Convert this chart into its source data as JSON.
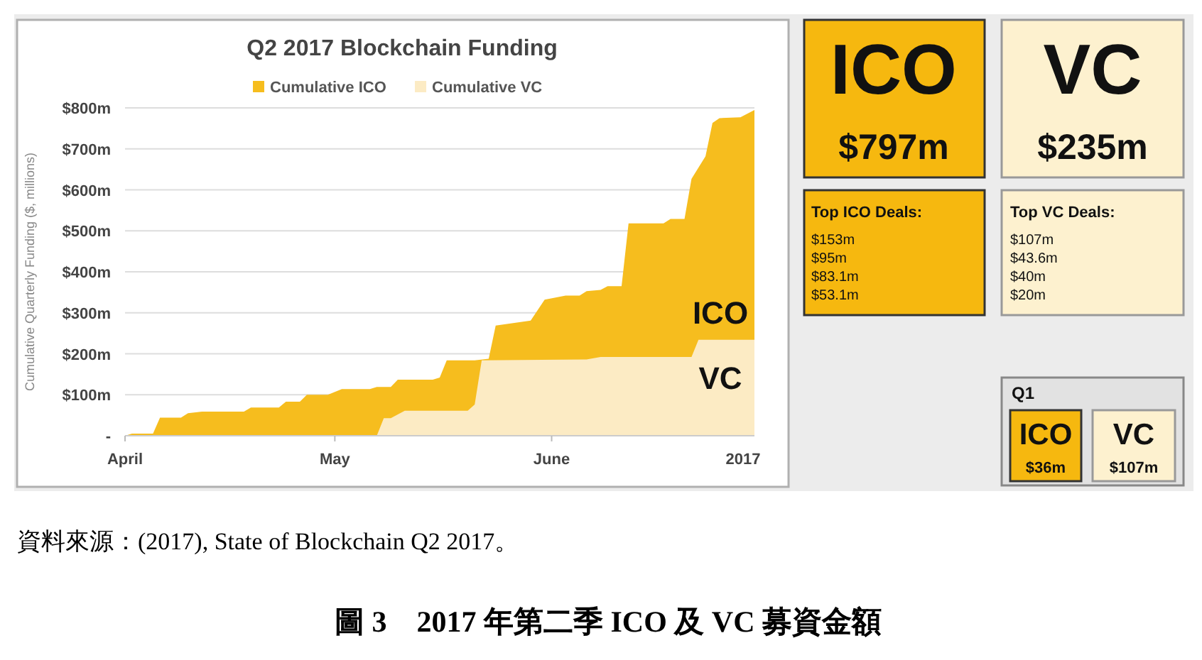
{
  "chart_data": [
    {
      "type": "area",
      "title": "Q2 2017 Blockchain Funding",
      "ylabel": "Cumulative Quarterly Funding ($, millions)",
      "legend": "top",
      "grid": "y",
      "xlim": [
        "2017-04-01",
        "2017-06-30"
      ],
      "xticks": [
        {
          "value": "2017-04-01",
          "label": "April"
        },
        {
          "value": "2017-05-01",
          "label": "May"
        },
        {
          "value": "2017-06-01",
          "label": "June"
        },
        {
          "value": "2017-06-30",
          "label": "2017"
        }
      ],
      "ylim": [
        0,
        800
      ],
      "yticks": [
        {
          "value": 0,
          "label": "-"
        },
        {
          "value": 100,
          "label": "$100m"
        },
        {
          "value": 200,
          "label": "$200m"
        },
        {
          "value": 300,
          "label": "$300m"
        },
        {
          "value": 400,
          "label": "$400m"
        },
        {
          "value": 500,
          "label": "$500m"
        },
        {
          "value": 600,
          "label": "$600m"
        },
        {
          "value": 700,
          "label": "$700m"
        },
        {
          "value": 800,
          "label": "$800m"
        }
      ],
      "series": [
        {
          "name": "Cumulative ICO",
          "color": "#f6bd1e",
          "x": [
            "2017-04-01",
            "2017-04-02",
            "2017-04-05",
            "2017-04-06",
            "2017-04-09",
            "2017-04-10",
            "2017-04-12",
            "2017-04-18",
            "2017-04-19",
            "2017-04-23",
            "2017-04-24",
            "2017-04-26",
            "2017-04-27",
            "2017-04-30",
            "2017-05-02",
            "2017-05-06",
            "2017-05-07",
            "2017-05-09",
            "2017-05-10",
            "2017-05-15",
            "2017-05-16",
            "2017-05-17",
            "2017-05-21",
            "2017-05-23",
            "2017-05-24",
            "2017-05-29",
            "2017-05-31",
            "2017-06-03",
            "2017-06-05",
            "2017-06-06",
            "2017-06-08",
            "2017-06-09",
            "2017-06-11",
            "2017-06-12",
            "2017-06-17",
            "2017-06-18",
            "2017-06-20",
            "2017-06-21",
            "2017-06-23",
            "2017-06-24",
            "2017-06-25",
            "2017-06-28",
            "2017-06-30"
          ],
          "values": [
            0,
            5,
            5,
            44,
            44,
            55,
            59,
            59,
            69,
            69,
            83,
            83,
            100,
            100,
            114,
            114,
            119,
            119,
            137,
            137,
            142,
            184,
            184,
            188,
            269,
            281,
            332,
            342,
            342,
            353,
            356,
            365,
            365,
            518,
            518,
            529,
            529,
            627,
            682,
            763,
            775,
            777,
            795
          ]
        },
        {
          "name": "Cumulative VC",
          "color": "#fcebc4",
          "x": [
            "2017-04-01",
            "2017-05-07",
            "2017-05-08",
            "2017-05-09",
            "2017-05-11",
            "2017-05-20",
            "2017-05-21",
            "2017-05-22",
            "2017-06-06",
            "2017-06-08",
            "2017-06-21",
            "2017-06-22",
            "2017-06-30"
          ],
          "values": [
            0,
            0,
            43,
            43,
            61,
            61,
            76,
            184,
            186,
            192,
            192,
            234,
            234
          ]
        }
      ],
      "annotations": [
        "ICO",
        "VC",
        "資料來源：(2017), State of Blockchain Q2 2017。",
        "圖 3　2017 年第二季 ICO 及 VC 募資金額"
      ]
    },
    {
      "type": "other",
      "colors": [
        "#f6b80f",
        "#fdf1cf"
      ],
      "annotations": [
        "ICO",
        "$797m",
        "VC",
        "$235m",
        "Top ICO Deals:",
        "$153m",
        "$95m",
        "$83.1m",
        "$53.1m",
        "Top VC Deals:",
        "$107m",
        "$43.6m",
        "$40m",
        "$20m",
        "Q1",
        "ICO",
        "$36m",
        "VC",
        "$107m"
      ]
    }
  ]
}
